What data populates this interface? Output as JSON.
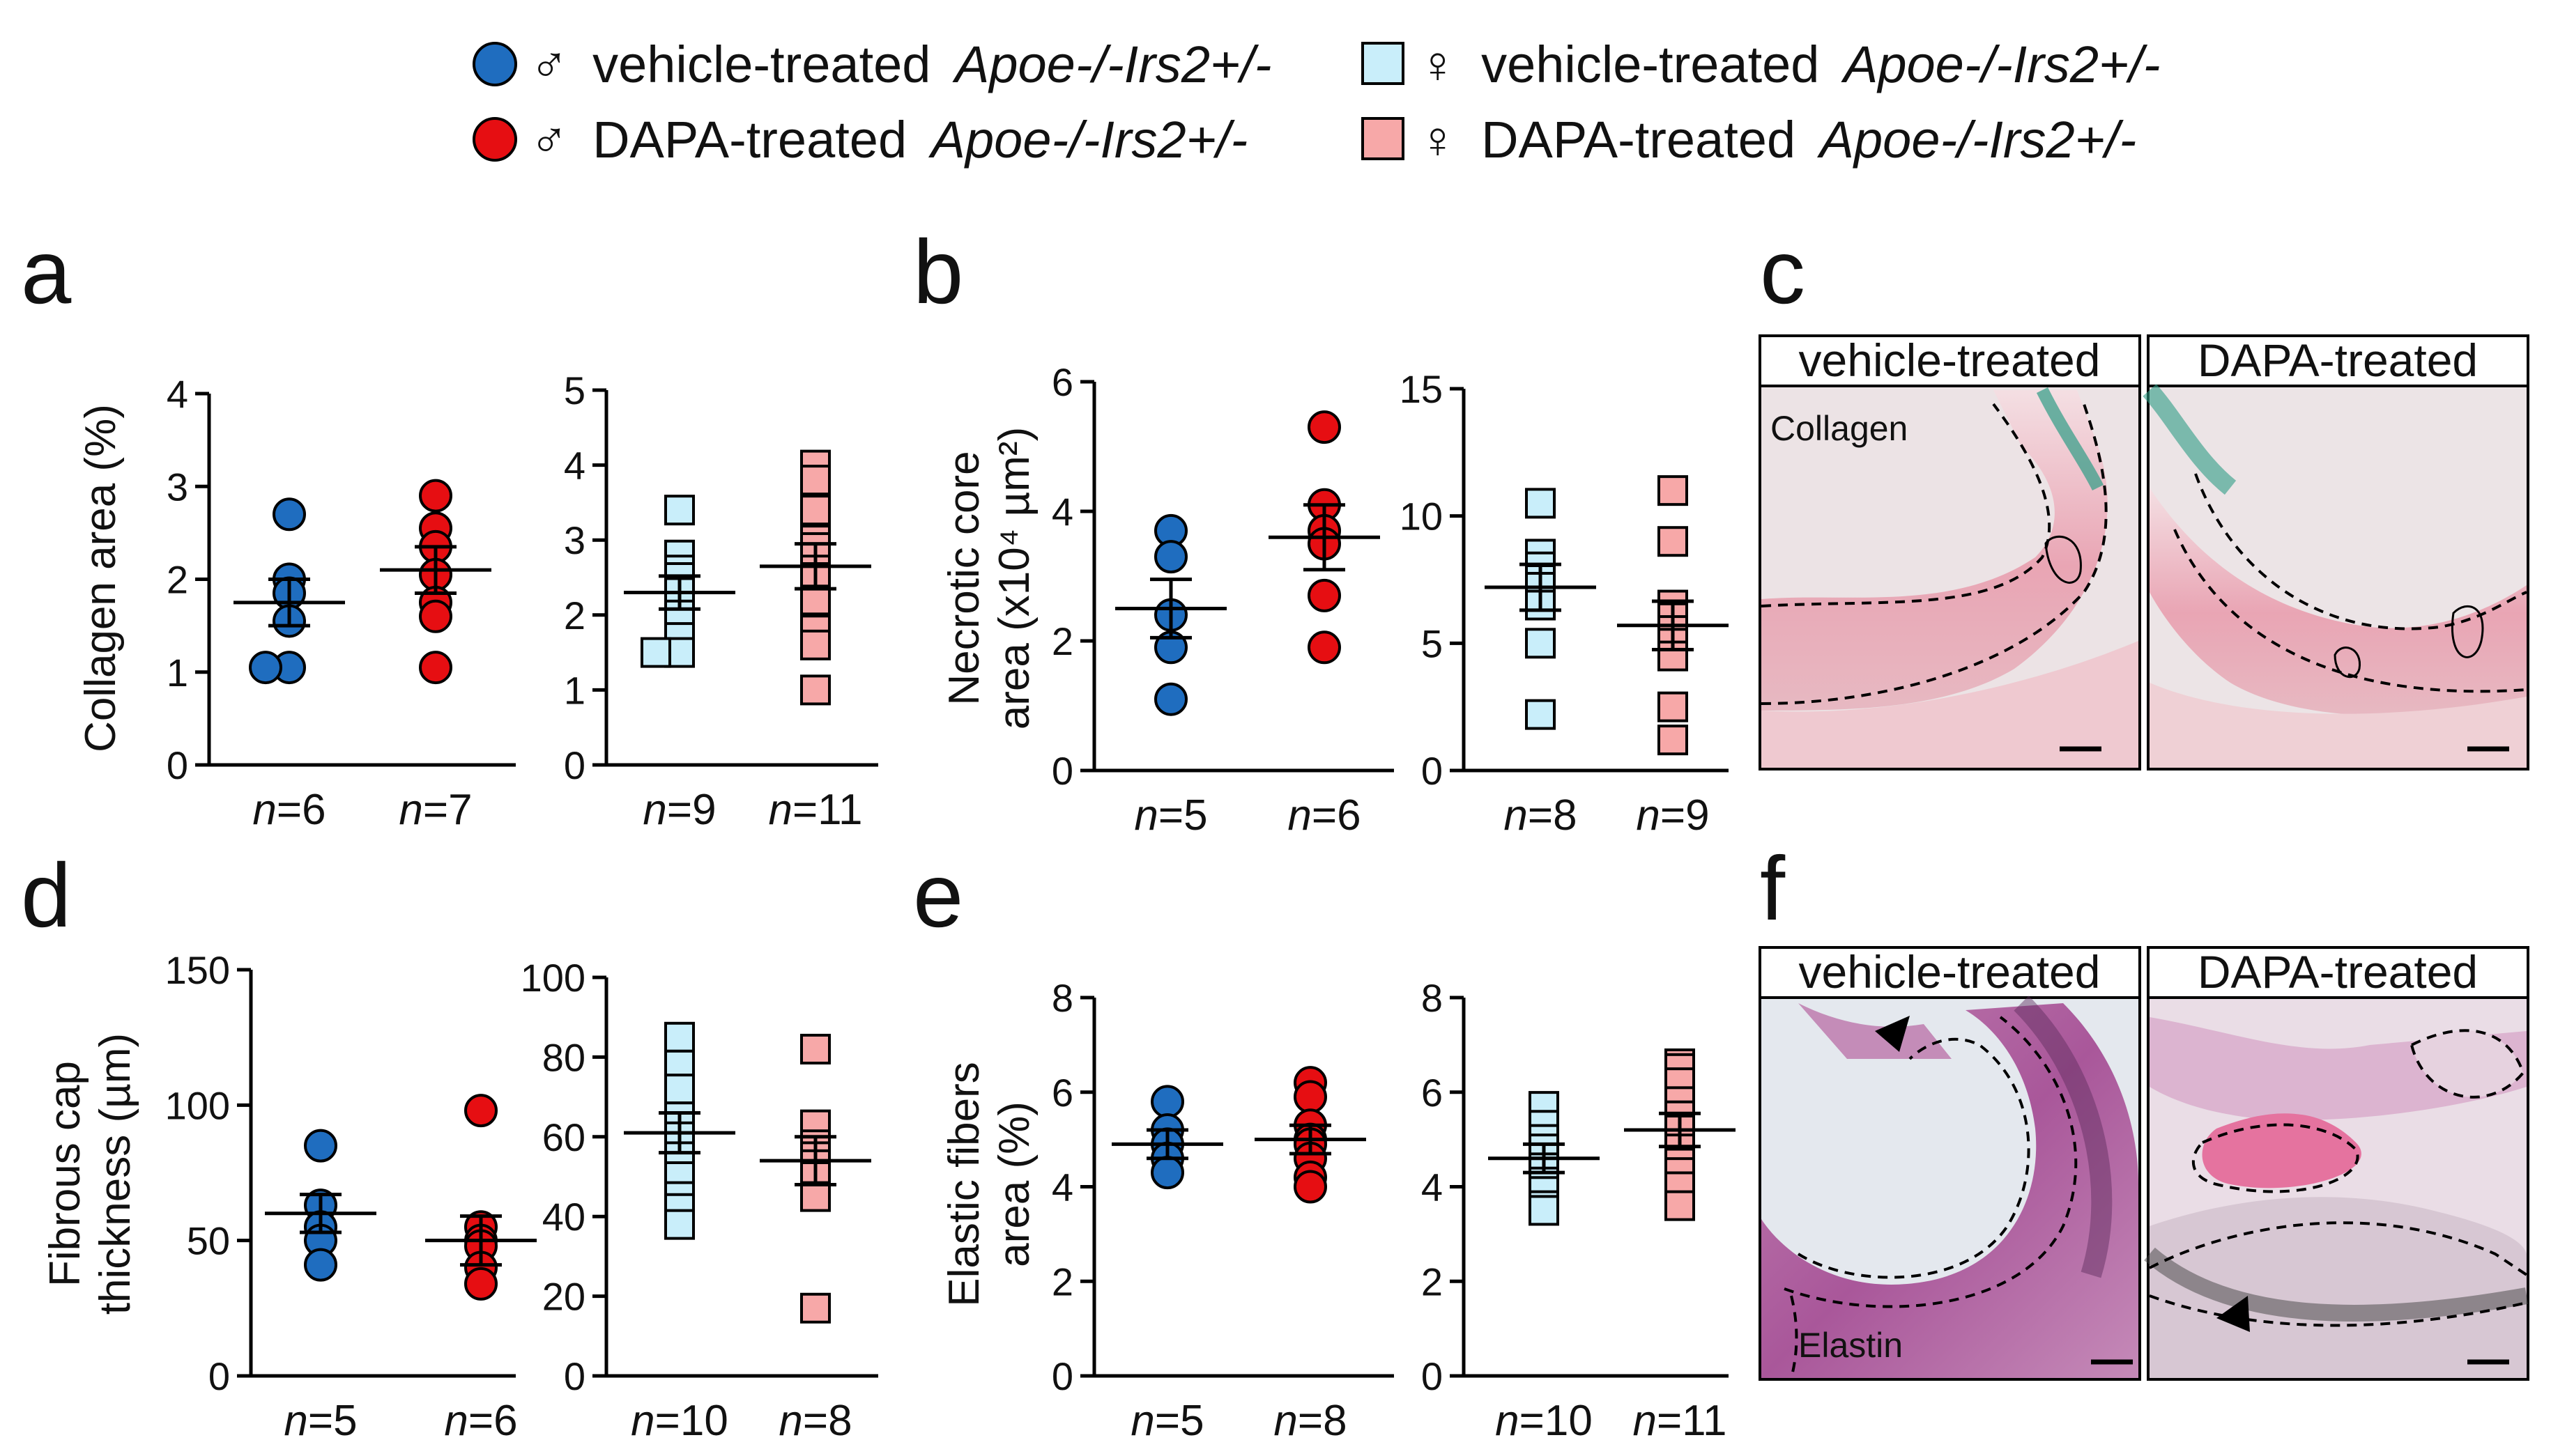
{
  "legend": {
    "items": [
      {
        "symbol": "circle",
        "color": "#1f6dbf",
        "sex": "♂",
        "label": "vehicle-treated",
        "genotype": "Apoe-/-Irs2+/-"
      },
      {
        "symbol": "circle",
        "color": "#e60e12",
        "sex": "♂",
        "label": "DAPA-treated",
        "genotype": "Apoe-/-Irs2+/-"
      },
      {
        "symbol": "square",
        "color": "#c9eefa",
        "sex": "♀",
        "label": "vehicle-treated",
        "genotype": "Apoe-/-Irs2+/-"
      },
      {
        "symbol": "square",
        "color": "#f7a8a8",
        "sex": "♀",
        "label": "DAPA-treated",
        "genotype": "Apoe-/-Irs2+/-"
      }
    ]
  },
  "panels": {
    "a": "a",
    "b": "b",
    "c": "c",
    "d": "d",
    "e": "e",
    "f": "f"
  },
  "micrographs": {
    "c": {
      "left_title": "vehicle-treated",
      "right_title": "DAPA-treated",
      "note": "Collagen"
    },
    "f": {
      "left_title": "vehicle-treated",
      "right_title": "DAPA-treated",
      "note": "Elastin"
    }
  },
  "colors": {
    "male_vehicle": "#1f6dbf",
    "male_dapa": "#e60e12",
    "female_vehicle": "#c9eefa",
    "female_dapa": "#f7a8a8"
  },
  "chart_data": [
    {
      "id": "a-male",
      "type": "scatter",
      "ylabel": "Collagen area (%)",
      "ylim": [
        0,
        4
      ],
      "yticks": [
        0,
        1,
        2,
        3,
        4
      ],
      "groups": [
        {
          "n_label": "n=6",
          "style": "male_vehicle",
          "shape": "circle",
          "mean": 1.75,
          "sem": 0.25,
          "values": [
            2.7,
            2.0,
            1.85,
            1.55,
            1.05,
            1.05
          ]
        },
        {
          "n_label": "n=7",
          "style": "male_dapa",
          "shape": "circle",
          "mean": 2.1,
          "sem": 0.25,
          "values": [
            2.9,
            2.55,
            2.35,
            2.05,
            1.75,
            1.6,
            1.05
          ]
        }
      ]
    },
    {
      "id": "a-female",
      "type": "scatter",
      "ylabel": "",
      "ylim": [
        0,
        5
      ],
      "yticks": [
        0,
        1,
        2,
        3,
        4,
        5
      ],
      "groups": [
        {
          "n_label": "n=9",
          "style": "female_vehicle",
          "shape": "square",
          "mean": 2.3,
          "sem": 0.22,
          "values": [
            3.4,
            2.8,
            2.6,
            2.5,
            2.3,
            2.0,
            1.7,
            1.5,
            1.5
          ]
        },
        {
          "n_label": "n=11",
          "style": "female_dapa",
          "shape": "square",
          "mean": 2.65,
          "sem": 0.3,
          "values": [
            4.0,
            3.8,
            3.4,
            3.0,
            2.9,
            2.6,
            2.5,
            2.2,
            1.8,
            1.6,
            1.0
          ]
        }
      ]
    },
    {
      "id": "b-male",
      "type": "scatter",
      "ylabel": "Necrotic core area (x10⁴ µm²)",
      "ylim": [
        0,
        6
      ],
      "yticks": [
        0,
        2,
        4,
        6
      ],
      "groups": [
        {
          "n_label": "n=5",
          "style": "male_vehicle",
          "shape": "circle",
          "mean": 2.5,
          "sem": 0.45,
          "values": [
            3.7,
            3.3,
            2.4,
            1.9,
            1.1
          ]
        },
        {
          "n_label": "n=6",
          "style": "male_dapa",
          "shape": "circle",
          "mean": 3.6,
          "sem": 0.5,
          "values": [
            5.3,
            4.1,
            3.7,
            3.5,
            2.7,
            1.9
          ]
        }
      ]
    },
    {
      "id": "b-female",
      "type": "scatter",
      "ylabel": "",
      "ylim": [
        0,
        15
      ],
      "yticks": [
        0,
        5,
        10,
        15
      ],
      "groups": [
        {
          "n_label": "n=8",
          "style": "female_vehicle",
          "shape": "square",
          "mean": 7.2,
          "sem": 0.9,
          "values": [
            10.5,
            8.5,
            8.0,
            7.5,
            7.2,
            6.5,
            5.0,
            2.2
          ]
        },
        {
          "n_label": "n=9",
          "style": "female_dapa",
          "shape": "square",
          "mean": 5.7,
          "sem": 0.95,
          "values": [
            11.0,
            9.0,
            6.5,
            6.0,
            5.5,
            5.0,
            4.5,
            2.5,
            1.2
          ]
        }
      ]
    },
    {
      "id": "d-male",
      "type": "scatter",
      "ylabel": "Fibrous cap thickness (µm)",
      "ylim": [
        0,
        150
      ],
      "yticks": [
        0,
        50,
        100,
        150
      ],
      "groups": [
        {
          "n_label": "n=5",
          "style": "male_vehicle",
          "shape": "circle",
          "mean": 60,
          "sem": 7,
          "values": [
            85,
            63,
            55,
            50,
            41
          ]
        },
        {
          "n_label": "n=6",
          "style": "male_dapa",
          "shape": "circle",
          "mean": 50,
          "sem": 9,
          "values": [
            98,
            55,
            50,
            48,
            40,
            34
          ]
        }
      ]
    },
    {
      "id": "d-female",
      "type": "scatter",
      "ylabel": "",
      "ylim": [
        0,
        100
      ],
      "yticks": [
        0,
        20,
        40,
        60,
        80,
        100
      ],
      "groups": [
        {
          "n_label": "n=10",
          "style": "female_vehicle",
          "shape": "square",
          "mean": 61,
          "sem": 5,
          "values": [
            85,
            78,
            72,
            65,
            60,
            55,
            50,
            45,
            42,
            38
          ]
        },
        {
          "n_label": "n=8",
          "style": "female_dapa",
          "shape": "square",
          "mean": 54,
          "sem": 6,
          "values": [
            82,
            63,
            58,
            55,
            53,
            50,
            45,
            17
          ]
        }
      ]
    },
    {
      "id": "e-male",
      "type": "scatter",
      "ylabel": "Elastic fibers area (%)",
      "ylim": [
        0,
        8
      ],
      "yticks": [
        0,
        2,
        4,
        6,
        8
      ],
      "groups": [
        {
          "n_label": "n=5",
          "style": "male_vehicle",
          "shape": "circle",
          "mean": 4.9,
          "sem": 0.3,
          "values": [
            5.8,
            5.2,
            4.9,
            4.6,
            4.3
          ]
        },
        {
          "n_label": "n=8",
          "style": "male_dapa",
          "shape": "circle",
          "mean": 5.0,
          "sem": 0.3,
          "values": [
            6.2,
            5.9,
            5.3,
            5.0,
            4.9,
            4.6,
            4.2,
            4.0
          ]
        }
      ]
    },
    {
      "id": "e-female",
      "type": "scatter",
      "ylabel": "",
      "ylim": [
        0,
        8
      ],
      "yticks": [
        0,
        2,
        4,
        6,
        8
      ],
      "groups": [
        {
          "n_label": "n=10",
          "style": "female_vehicle",
          "shape": "square",
          "mean": 4.6,
          "sem": 0.3,
          "values": [
            5.7,
            5.3,
            5.0,
            4.8,
            4.6,
            4.4,
            4.1,
            3.9,
            3.6,
            3.5
          ]
        },
        {
          "n_label": "n=11",
          "style": "female_dapa",
          "shape": "square",
          "mean": 5.2,
          "sem": 0.35,
          "values": [
            6.6,
            6.5,
            6.2,
            5.8,
            5.5,
            5.2,
            4.8,
            4.5,
            4.3,
            4.0,
            3.6
          ]
        }
      ]
    }
  ]
}
